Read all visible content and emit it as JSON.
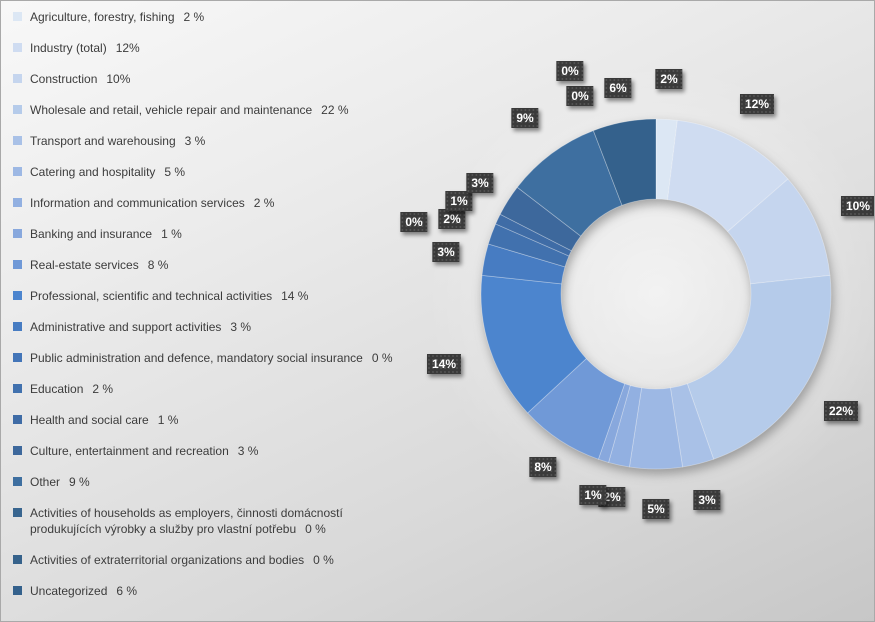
{
  "chart_data": {
    "type": "pie",
    "subtype": "donut",
    "title": "",
    "legend_position": "left",
    "start_angle_deg": 0,
    "categories": [
      "Agriculture, forestry, fishing",
      "Industry (total)",
      "Construction",
      "Wholesale and retail, vehicle repair and maintenance",
      "Transport and warehousing",
      "Catering and hospitality",
      "Information and communication services",
      "Banking and insurance",
      "Real-estate services",
      "Professional, scientific and technical activities",
      "Administrative and support activities",
      "Public administration and defence, mandatory social insurance",
      "Education",
      "Health and social care",
      "Culture, entertainment and recreation",
      "Other",
      "Activities of households as employers, činnosti domácností produkujících výrobky a služby pro vlastní potřebu",
      "Activities of extraterritorial organizations and bodies",
      "Uncategorized"
    ],
    "values": [
      2,
      12,
      10,
      22,
      3,
      5,
      2,
      1,
      8,
      14,
      3,
      0,
      2,
      1,
      3,
      9,
      0,
      0,
      6
    ],
    "legend_value_labels": [
      "2 %",
      "12%",
      "10%",
      "22 %",
      "3 %",
      "5 %",
      "2 %",
      "1 %",
      "8 %",
      "14 %",
      "3 %",
      "0 %",
      "2 %",
      "1 %",
      "3 %",
      "9 %",
      "0 %",
      "0 %",
      "6 %"
    ],
    "data_labels": [
      "2%",
      "12%",
      "10%",
      "22%",
      "3%",
      "5%",
      "2%",
      "1%",
      "8%",
      "14%",
      "3%",
      "0%",
      "2%",
      "1%",
      "3%",
      "9%",
      "0%",
      "0%",
      "6%"
    ],
    "colors": [
      "#dce7f4",
      "#cfdcf1",
      "#c5d5ee",
      "#b5cbea",
      "#a9c1e7",
      "#9db8e4",
      "#92b0e1",
      "#88a8dd",
      "#7099d7",
      "#4c85ce",
      "#477cc2",
      "#4375b8",
      "#4171ae",
      "#3f6ca6",
      "#3d689c",
      "#3e6fa0",
      "#38658f",
      "#36628b",
      "#34618c"
    ],
    "data_label_chip_bg": "#3a3a3a",
    "data_label_text_color": "#ffffff",
    "legend_text_color": "#3c3c3c"
  }
}
